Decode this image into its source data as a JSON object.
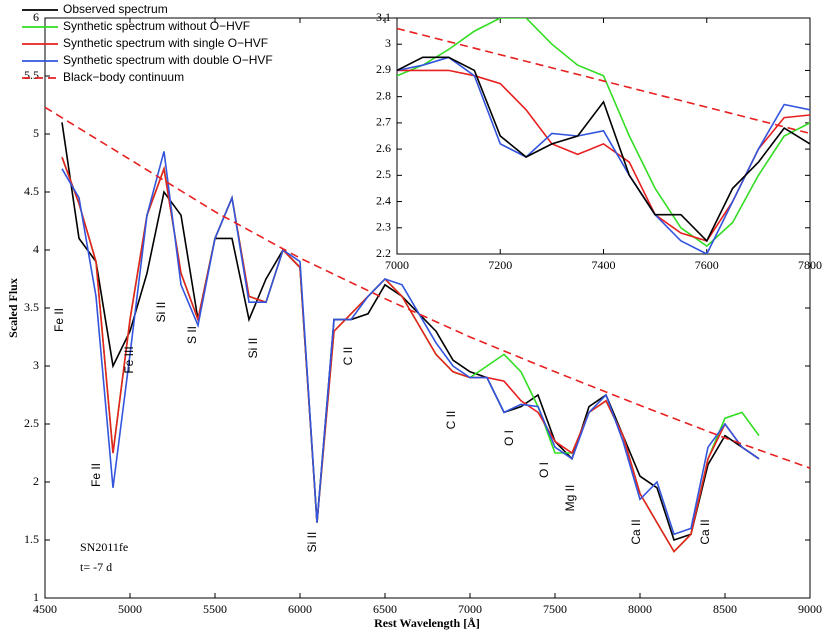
{
  "chart_data": [
    {
      "type": "line",
      "xlabel": "Rest Wavelength [Å]",
      "ylabel": "Scaled Flux",
      "xlim": [
        4500,
        9000
      ],
      "xticks": [
        4500,
        5000,
        5500,
        6000,
        6500,
        7000,
        7500,
        8000,
        8500,
        9000
      ],
      "ylim": [
        1,
        6
      ],
      "yticks": [
        1,
        1.5,
        2,
        2.5,
        3,
        3.5,
        4,
        4.5,
        5,
        5.5,
        6
      ],
      "legend": "upper left",
      "annotations": [
        "Fe II",
        "Fe II",
        "Fe III",
        "Si II",
        "S II",
        "Si II",
        "C II",
        "Si II",
        "C II",
        "O I",
        "O I",
        "Mg II",
        "Ca II",
        "Ca II",
        "SN2011fe",
        "t= -7 d"
      ],
      "series": [
        {
          "name": "Observed spectrum",
          "color": "#000000",
          "x": [
            4600,
            4700,
            4800,
            4900,
            5000,
            5100,
            5200,
            5300,
            5400,
            5500,
            5600,
            5700,
            5800,
            5900,
            6000,
            6100,
            6200,
            6300,
            6400,
            6500,
            6600,
            6700,
            6800,
            6900,
            7000,
            7100,
            7200,
            7300,
            7400,
            7500,
            7600,
            7700,
            7800,
            7900,
            8000,
            8100,
            8200,
            8300,
            8400,
            8500,
            8600,
            8700
          ],
          "values": [
            5.1,
            4.1,
            3.9,
            3.0,
            3.3,
            3.8,
            4.5,
            4.3,
            3.4,
            4.1,
            4.1,
            3.4,
            3.75,
            4.0,
            3.85,
            1.65,
            3.4,
            3.4,
            3.45,
            3.7,
            3.6,
            3.45,
            3.3,
            3.05,
            2.95,
            2.9,
            2.6,
            2.65,
            2.75,
            2.35,
            2.2,
            2.65,
            2.75,
            2.4,
            2.05,
            1.95,
            1.5,
            1.55,
            2.15,
            2.4,
            2.3,
            2.2
          ]
        },
        {
          "name": "Synthetic spectrum without O−HVF",
          "color": "#33dd22",
          "x": [
            4600,
            4700,
            4800,
            4900,
            5000,
            5100,
            5200,
            5300,
            5400,
            5500,
            5600,
            5700,
            5800,
            5900,
            6000,
            6100,
            6200,
            6300,
            6400,
            6500,
            6600,
            6700,
            6800,
            6900,
            7000,
            7100,
            7200,
            7300,
            7400,
            7500,
            7600,
            7700,
            7800,
            7900,
            8000,
            8100,
            8200,
            8300,
            8400,
            8500,
            8600,
            8700
          ],
          "values": [
            4.8,
            4.4,
            3.9,
            2.25,
            3.4,
            4.3,
            4.7,
            3.8,
            3.4,
            4.1,
            4.45,
            3.6,
            3.55,
            4.0,
            3.85,
            1.65,
            3.3,
            3.45,
            3.6,
            3.75,
            3.6,
            3.35,
            3.1,
            2.95,
            2.9,
            3.0,
            3.1,
            2.95,
            2.65,
            2.25,
            2.25,
            2.6,
            2.7,
            2.4,
            1.9,
            1.65,
            1.4,
            1.55,
            2.2,
            2.55,
            2.6,
            2.4
          ]
        },
        {
          "name": "Synthetic spectrum with single O−HVF",
          "color": "#e82020",
          "x": [
            4600,
            4700,
            4800,
            4900,
            5000,
            5100,
            5200,
            5300,
            5400,
            5500,
            5600,
            5700,
            5800,
            5900,
            6000,
            6100,
            6200,
            6300,
            6400,
            6500,
            6600,
            6700,
            6800,
            6900,
            7000,
            7100,
            7200,
            7300,
            7400,
            7500,
            7600,
            7700,
            7800,
            7900,
            8000,
            8100,
            8200,
            8300,
            8400,
            8500,
            8600,
            8700
          ],
          "values": [
            4.8,
            4.4,
            3.9,
            2.25,
            3.4,
            4.3,
            4.7,
            3.8,
            3.4,
            4.1,
            4.45,
            3.6,
            3.55,
            4.0,
            3.85,
            1.65,
            3.3,
            3.45,
            3.6,
            3.75,
            3.6,
            3.35,
            3.1,
            2.95,
            2.9,
            2.9,
            2.87,
            2.7,
            2.6,
            2.35,
            2.25,
            2.6,
            2.7,
            2.4,
            1.9,
            1.65,
            1.4,
            1.55,
            2.2,
            2.5,
            2.3,
            2.2
          ]
        },
        {
          "name": "Synthetic spectrum with double O−HVF",
          "color": "#3355dd",
          "x": [
            4600,
            4700,
            4800,
            4900,
            5000,
            5100,
            5200,
            5300,
            5400,
            5500,
            5600,
            5700,
            5800,
            5900,
            6000,
            6100,
            6200,
            6300,
            6400,
            6500,
            6600,
            6700,
            6800,
            6900,
            7000,
            7100,
            7200,
            7300,
            7400,
            7500,
            7600,
            7700,
            7800,
            7900,
            8000,
            8100,
            8200,
            8300,
            8400,
            8500,
            8600,
            8700
          ],
          "values": [
            4.7,
            4.45,
            3.6,
            1.95,
            3.1,
            4.3,
            4.85,
            3.7,
            3.35,
            4.1,
            4.45,
            3.55,
            3.55,
            4.0,
            3.9,
            1.65,
            3.4,
            3.4,
            3.6,
            3.75,
            3.7,
            3.45,
            3.2,
            3.0,
            2.9,
            2.9,
            2.6,
            2.67,
            2.65,
            2.3,
            2.2,
            2.6,
            2.75,
            2.35,
            1.85,
            2.0,
            1.55,
            1.6,
            2.3,
            2.5,
            2.3,
            2.2
          ]
        },
        {
          "name": "Black−body continuum",
          "color": "#e82020",
          "dashed": true,
          "x": [
            4500,
            5000,
            5500,
            6000,
            6500,
            7000,
            7500,
            8000,
            8500,
            9000
          ],
          "values": [
            5.23,
            4.78,
            4.33,
            3.93,
            3.58,
            3.25,
            2.95,
            2.66,
            2.38,
            2.12
          ]
        }
      ]
    },
    {
      "type": "line",
      "xlim": [
        7000,
        7800
      ],
      "xticks": [
        7000,
        7200,
        7400,
        7600,
        7800
      ],
      "ylim": [
        2.2,
        3.1
      ],
      "yticks": [
        2.2,
        2.3,
        2.4,
        2.5,
        2.6,
        2.7,
        2.8,
        2.9,
        3,
        3.1
      ],
      "series": [
        {
          "color": "#33dd22",
          "x": [
            7000,
            7050,
            7100,
            7150,
            7200,
            7250,
            7300,
            7350,
            7400,
            7450,
            7500,
            7550,
            7600,
            7650,
            7700,
            7750,
            7800
          ],
          "values": [
            2.88,
            2.92,
            2.98,
            3.05,
            3.1,
            3.1,
            3.0,
            2.92,
            2.88,
            2.65,
            2.45,
            2.3,
            2.23,
            2.32,
            2.5,
            2.65,
            2.7
          ]
        },
        {
          "color": "#e82020",
          "x": [
            7000,
            7050,
            7100,
            7150,
            7200,
            7250,
            7300,
            7350,
            7400,
            7450,
            7500,
            7550,
            7600,
            7650,
            7700,
            7750,
            7800
          ],
          "values": [
            2.9,
            2.9,
            2.9,
            2.88,
            2.85,
            2.75,
            2.62,
            2.58,
            2.62,
            2.55,
            2.35,
            2.28,
            2.25,
            2.4,
            2.6,
            2.72,
            2.73
          ]
        },
        {
          "color": "#3355dd",
          "x": [
            7000,
            7050,
            7100,
            7150,
            7200,
            7250,
            7300,
            7350,
            7400,
            7450,
            7500,
            7550,
            7600,
            7650,
            7700,
            7750,
            7800
          ],
          "values": [
            2.9,
            2.92,
            2.95,
            2.88,
            2.62,
            2.57,
            2.66,
            2.65,
            2.67,
            2.5,
            2.35,
            2.25,
            2.2,
            2.4,
            2.6,
            2.77,
            2.75
          ]
        },
        {
          "color": "#000000",
          "x": [
            7000,
            7050,
            7100,
            7150,
            7200,
            7250,
            7300,
            7350,
            7400,
            7450,
            7500,
            7550,
            7600,
            7650,
            7700,
            7750,
            7800
          ],
          "values": [
            2.9,
            2.95,
            2.95,
            2.9,
            2.65,
            2.57,
            2.62,
            2.65,
            2.78,
            2.5,
            2.35,
            2.35,
            2.25,
            2.45,
            2.55,
            2.68,
            2.62
          ]
        },
        {
          "color": "#e82020",
          "dashed": true,
          "x": [
            7000,
            7800
          ],
          "values": [
            3.06,
            2.66
          ]
        }
      ]
    }
  ]
}
